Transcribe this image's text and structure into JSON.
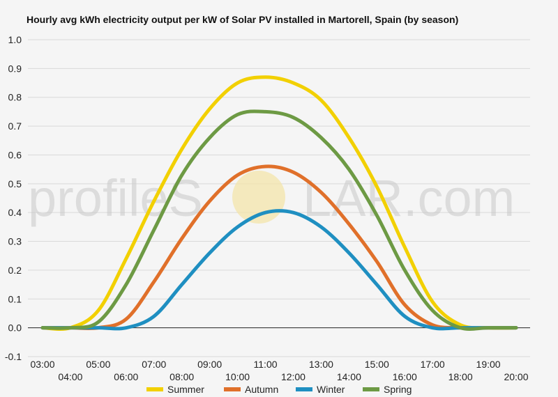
{
  "watermark": {
    "left": "profileS",
    "right": "LAR.com"
  },
  "chart_data": {
    "type": "line",
    "title": "Hourly avg kWh electricity output per kW of Solar PV installed in Martorell, Spain (by season)",
    "xlabel": "",
    "ylabel": "",
    "x": [
      "03:00",
      "04:00",
      "05:00",
      "06:00",
      "07:00",
      "08:00",
      "09:00",
      "10:00",
      "11:00",
      "12:00",
      "13:00",
      "14:00",
      "15:00",
      "16:00",
      "17:00",
      "18:00",
      "19:00",
      "20:00"
    ],
    "ylim": [
      -0.1,
      1.0
    ],
    "y_ticks": [
      "1.0",
      "0.9",
      "0.8",
      "0.7",
      "0.6",
      "0.5",
      "0.4",
      "0.3",
      "0.2",
      "0.1",
      "0.0",
      "-0.1"
    ],
    "grid": true,
    "legend_position": "bottom",
    "series": [
      {
        "name": "Summer",
        "color": "#f2d000",
        "values": [
          0.0,
          0.0,
          0.06,
          0.24,
          0.44,
          0.62,
          0.76,
          0.85,
          0.87,
          0.85,
          0.79,
          0.66,
          0.49,
          0.28,
          0.09,
          0.01,
          0.0,
          0.0
        ]
      },
      {
        "name": "Autumn",
        "color": "#e0702a",
        "values": [
          0.0,
          0.0,
          0.0,
          0.03,
          0.16,
          0.31,
          0.44,
          0.53,
          0.56,
          0.54,
          0.47,
          0.36,
          0.23,
          0.08,
          0.01,
          0.0,
          0.0,
          0.0
        ]
      },
      {
        "name": "Winter",
        "color": "#1f8fc1",
        "values": [
          0.0,
          0.0,
          0.0,
          0.0,
          0.04,
          0.15,
          0.26,
          0.35,
          0.4,
          0.4,
          0.35,
          0.26,
          0.15,
          0.04,
          0.0,
          0.0,
          0.0,
          0.0
        ]
      },
      {
        "name": "Spring",
        "color": "#6d9a44",
        "values": [
          0.0,
          0.0,
          0.02,
          0.15,
          0.34,
          0.53,
          0.66,
          0.74,
          0.75,
          0.73,
          0.66,
          0.55,
          0.39,
          0.2,
          0.06,
          0.0,
          0.0,
          0.0
        ]
      }
    ]
  }
}
